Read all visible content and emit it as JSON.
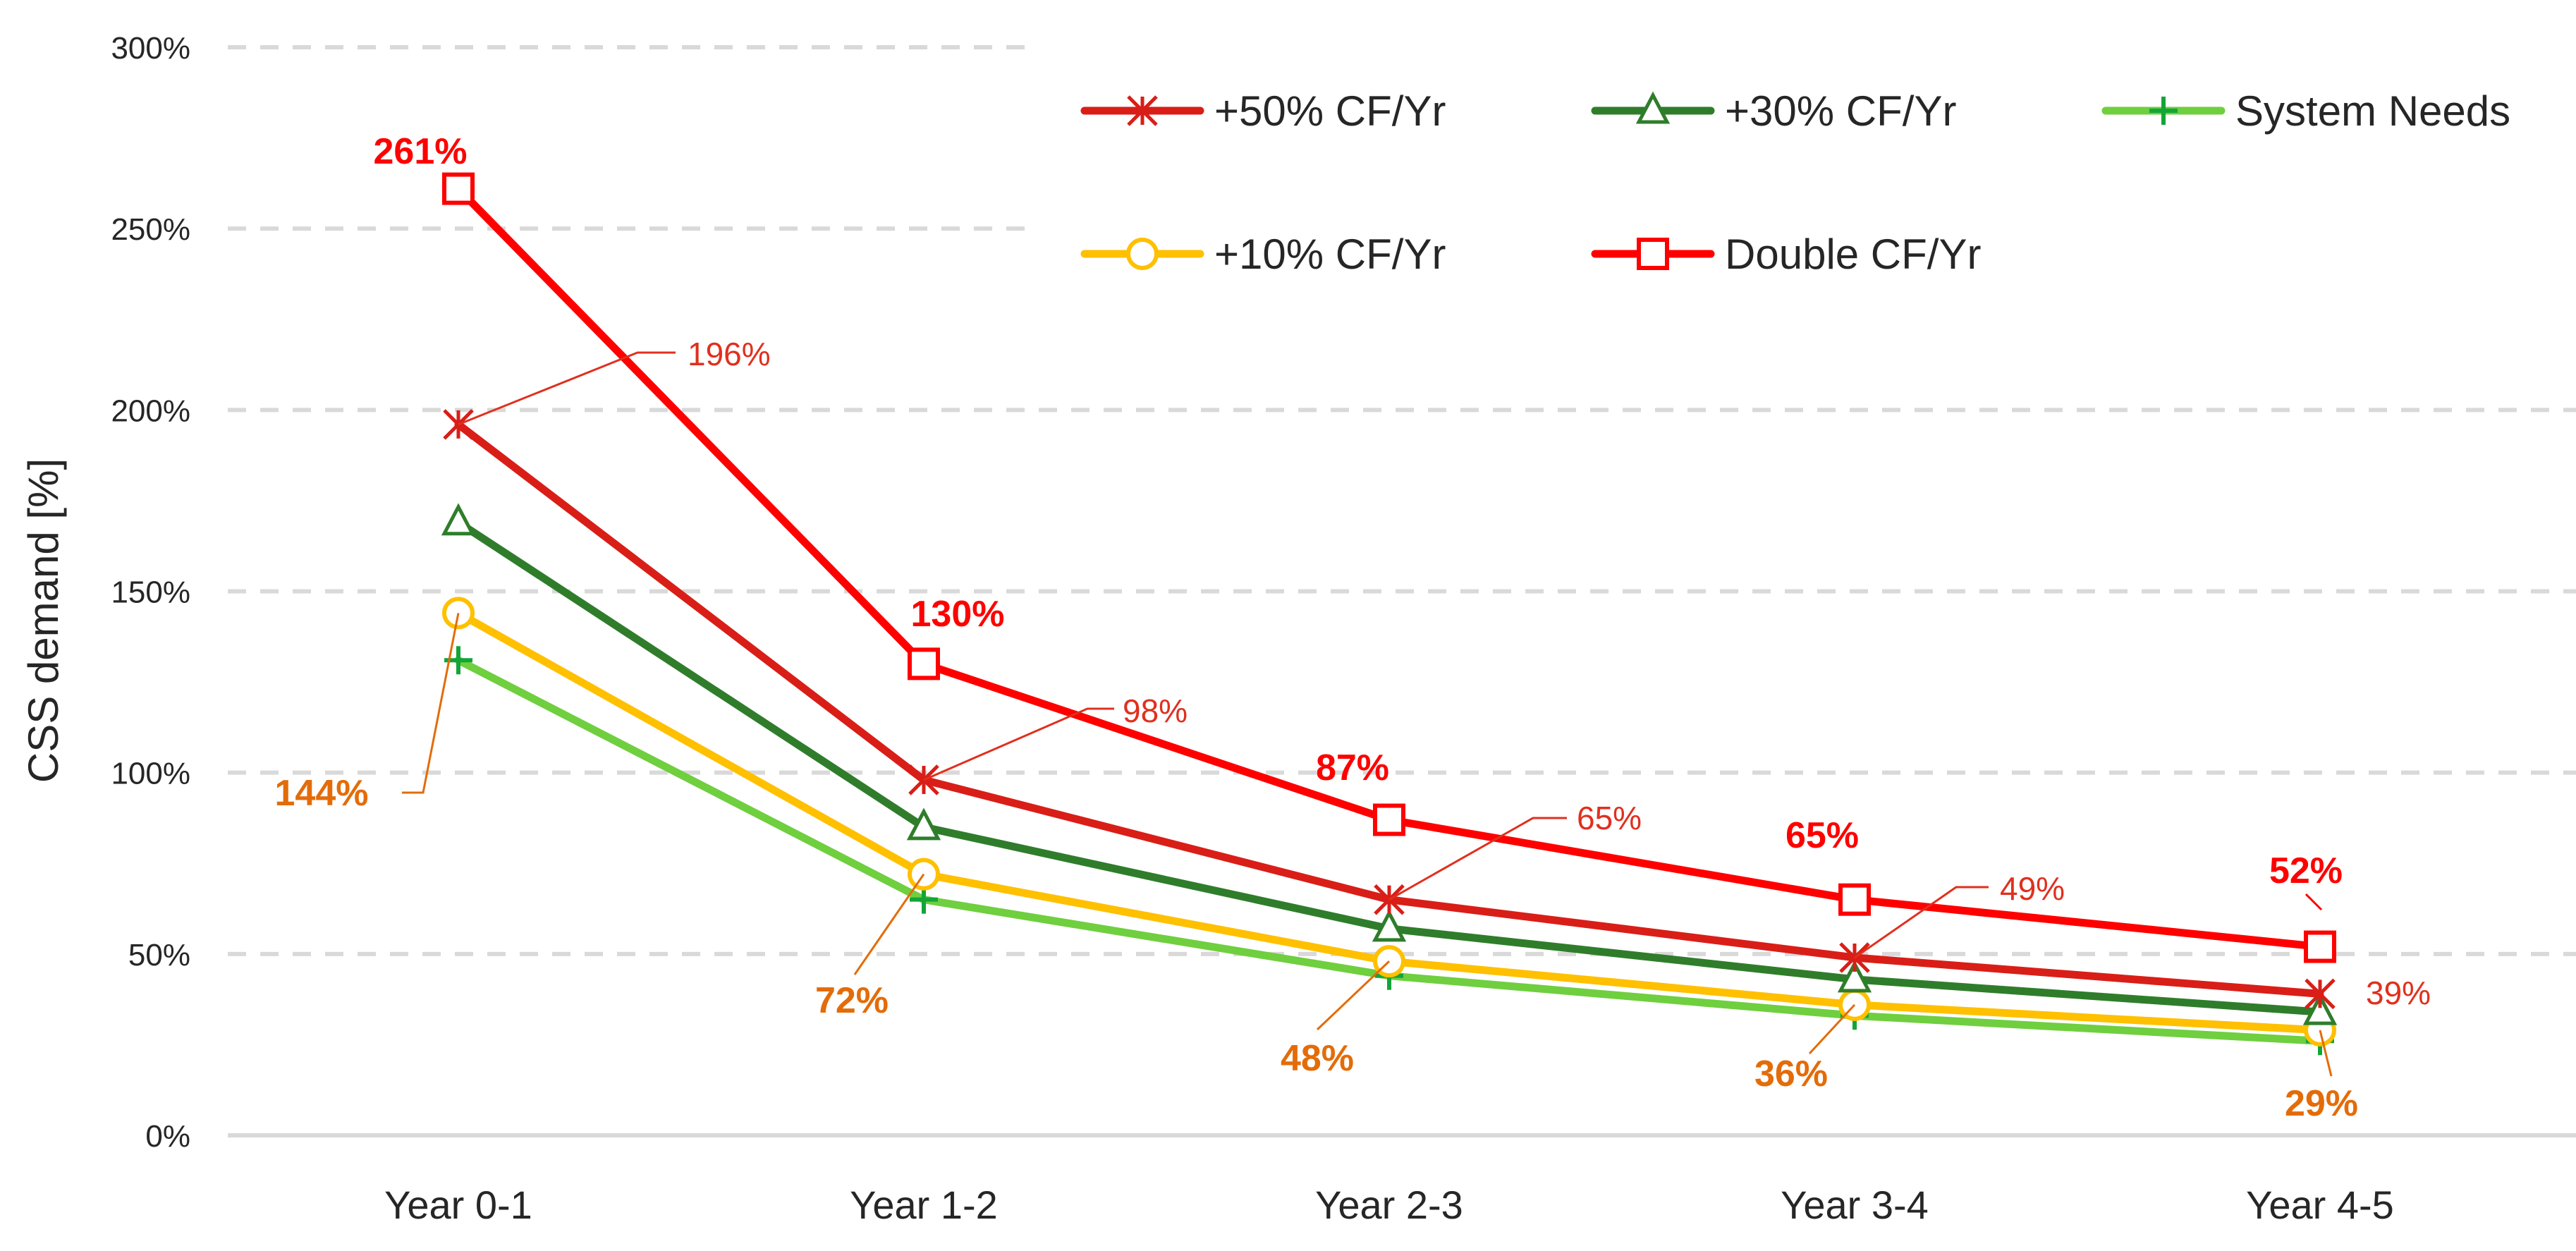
{
  "chart_data": {
    "type": "line",
    "title": "",
    "xlabel": "",
    "ylabel": "CSS demand [%]",
    "ylim": [
      0,
      300
    ],
    "yticks": [
      0,
      50,
      100,
      150,
      200,
      250,
      300
    ],
    "ytick_labels": [
      "0%",
      "50%",
      "100%",
      "150%",
      "200%",
      "250%",
      "300%"
    ],
    "categories": [
      "Year 0-1",
      "Year 1-2",
      "Year 2-3",
      "Year 3-4",
      "Year 4-5"
    ],
    "grid": true,
    "legend_position": "top-right",
    "series": [
      {
        "name": "+50% CF/Yr",
        "color": "#d91e18",
        "marker": "asterisk",
        "values": [
          196,
          98,
          65,
          49,
          39
        ]
      },
      {
        "name": "+30% CF/Yr",
        "color": "#2f7d2b",
        "marker": "triangle",
        "values": [
          169,
          85,
          57,
          43,
          34
        ]
      },
      {
        "name": "System Needs",
        "color": "#6fcf3f",
        "marker": "plus",
        "values": [
          131,
          65,
          44,
          33,
          26
        ]
      },
      {
        "name": "+10% CF/Yr",
        "color": "#ffc000",
        "marker": "circle",
        "values": [
          144,
          72,
          48,
          36,
          29
        ]
      },
      {
        "name": "Double CF/Yr",
        "color": "#ff0000",
        "marker": "square",
        "values": [
          261,
          130,
          87,
          65,
          52
        ]
      }
    ],
    "legend_order": [
      "+50% CF/Yr",
      "+30% CF/Yr",
      "System Needs",
      "+10% CF/Yr",
      "Double CF/Yr"
    ],
    "data_labels": {
      "double": [
        "261%",
        "130%",
        "87%",
        "65%",
        "52%"
      ],
      "plus50": [
        "196%",
        "98%",
        "65%",
        "49%",
        "39%"
      ],
      "plus10": [
        "144%",
        "72%",
        "48%",
        "36%",
        "29%"
      ]
    },
    "label_colors": {
      "double": "#ff0000",
      "plus50": "#e0301e",
      "plus10": "#e36c09"
    }
  }
}
